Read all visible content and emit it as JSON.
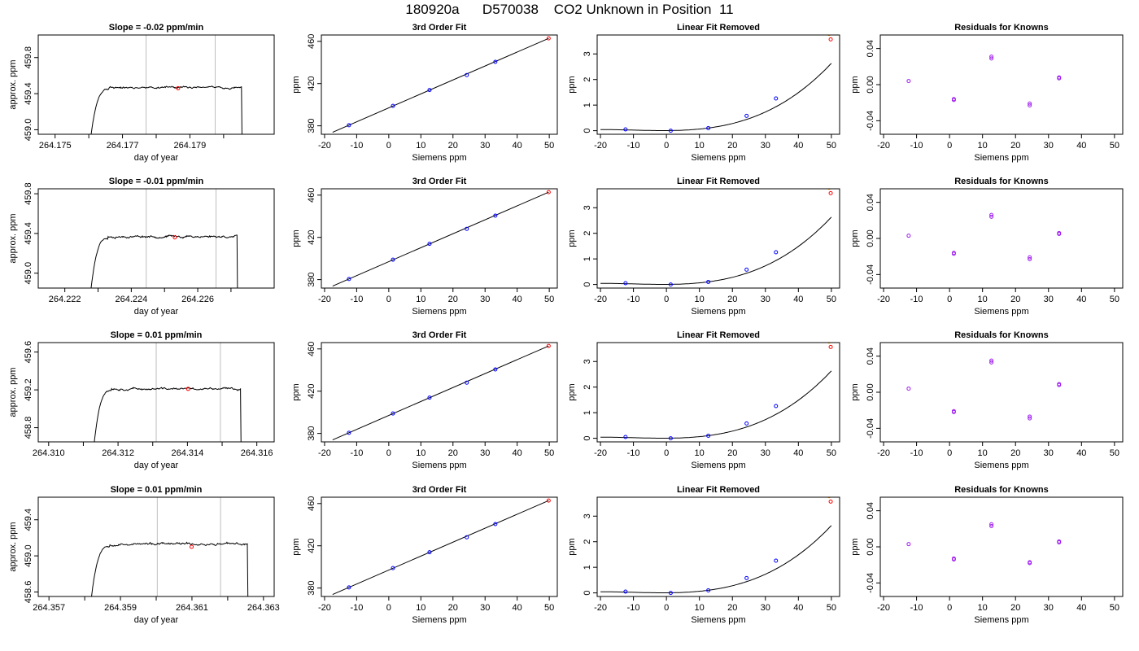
{
  "figure": {
    "title": "180920a      D570038    CO2 Unknown in Position  11"
  },
  "chart_data": [
    {
      "type": "line",
      "panel": "time-trace",
      "row": 0,
      "title": "Slope =  -0.02  ppm/min",
      "xlabel": "day of year",
      "ylabel": "approx. ppm",
      "xlim": [
        264.1745,
        264.1815
      ],
      "ylim": [
        458.95,
        460.05
      ],
      "xticks": [
        264.175,
        264.177,
        264.179
      ],
      "xtick_labels": [
        "264.175",
        "264.177",
        "264.179"
      ],
      "xminor": [
        264.176,
        264.178,
        264.18
      ],
      "yticks": [
        459.0,
        459.4,
        459.8
      ],
      "ytick_labels": [
        "459.0",
        "459.4",
        "459.8"
      ],
      "t_start": 264.17591,
      "t_rise_end": 264.1766,
      "t_end": 264.18053,
      "plateau": 459.47,
      "noise": 0.012,
      "seed": 11,
      "vlines": [
        264.1777,
        264.17975
      ],
      "marker": {
        "x": 264.17865,
        "y": 459.46
      }
    },
    {
      "type": "line",
      "panel": "time-trace",
      "row": 1,
      "title": "Slope =  -0.01  ppm/min",
      "xlabel": "day of year",
      "ylabel": "approx. ppm",
      "xlim": [
        264.2212,
        264.2283
      ],
      "ylim": [
        458.85,
        459.85
      ],
      "xticks": [
        264.222,
        264.224,
        264.226
      ],
      "xtick_labels": [
        "264.222",
        "264.224",
        "264.226"
      ],
      "xminor": [
        264.223,
        264.225,
        264.227
      ],
      "yticks": [
        459.0,
        459.4,
        459.8
      ],
      "ytick_labels": [
        "459.0",
        "459.4",
        "459.8"
      ],
      "t_start": 264.22264,
      "t_rise_end": 264.2233,
      "t_end": 264.22718,
      "plateau": 459.37,
      "noise": 0.012,
      "seed": 23,
      "vlines": [
        264.22445,
        264.22655
      ],
      "marker": {
        "x": 264.22531,
        "y": 459.36
      }
    },
    {
      "type": "line",
      "panel": "time-trace",
      "row": 2,
      "title": "Slope =  0.01  ppm/min",
      "xlabel": "day of year",
      "ylabel": "approx. ppm",
      "xlim": [
        264.3097,
        264.3165
      ],
      "ylim": [
        458.65,
        459.7
      ],
      "xticks": [
        264.31,
        264.312,
        264.314,
        264.316
      ],
      "xtick_labels": [
        "264.310",
        "264.312",
        "264.314",
        "264.316"
      ],
      "xminor": [
        264.311,
        264.313,
        264.315
      ],
      "yticks": [
        458.8,
        459.2,
        459.6
      ],
      "ytick_labels": [
        "458.8",
        "459.2",
        "459.6"
      ],
      "t_start": 264.31118,
      "t_rise_end": 264.3118,
      "t_end": 264.31553,
      "plateau": 459.21,
      "noise": 0.012,
      "seed": 37,
      "vlines": [
        264.3131,
        264.31495
      ],
      "marker": {
        "x": 264.31402,
        "y": 459.21
      }
    },
    {
      "type": "line",
      "panel": "time-trace",
      "row": 3,
      "title": "Slope =  0.01  ppm/min",
      "xlabel": "day of year",
      "ylabel": "approx. ppm",
      "xlim": [
        264.3567,
        264.3633
      ],
      "ylim": [
        458.55,
        459.65
      ],
      "xticks": [
        264.357,
        264.359,
        264.361,
        264.363
      ],
      "xtick_labels": [
        "264.357",
        "264.359",
        "264.361",
        "264.363"
      ],
      "xminor": [
        264.358,
        264.36,
        264.362
      ],
      "yticks": [
        458.6,
        459.0,
        459.4
      ],
      "ytick_labels": [
        "458.6",
        "459.0",
        "459.4"
      ],
      "t_start": 264.35805,
      "t_rise_end": 264.3587,
      "t_end": 264.36255,
      "plateau": 459.13,
      "noise": 0.014,
      "seed": 53,
      "vlines": [
        264.36003,
        264.3618
      ],
      "marker": {
        "x": 264.36099,
        "y": 459.1
      }
    },
    {
      "type": "scatter",
      "panel": "cubic-fit",
      "row": 0,
      "title": "3rd Order Fit",
      "xlabel": "Siemens ppm",
      "ylabel": "ppm",
      "xlim": [
        -21,
        52.5
      ],
      "ylim": [
        372,
        466
      ],
      "xticks": [
        -20,
        -10,
        0,
        10,
        20,
        30,
        40,
        50
      ],
      "xtick_labels": [
        "-20",
        "-10",
        "0",
        "10",
        "20",
        "30",
        "40",
        "50"
      ],
      "yticks": [
        380,
        420,
        460
      ],
      "ytick_labels": [
        "380",
        "420",
        "460"
      ],
      "line": {
        "x": [
          -17.5,
          49.8
        ],
        "y": [
          373.9,
          462.8
        ]
      },
      "knowns": {
        "x": [
          -12.4,
          1.3,
          12.7,
          24.3,
          33.2
        ],
        "y": [
          380.6,
          398.9,
          413.9,
          428.1,
          440.6
        ]
      },
      "unknown": {
        "x": 49.8,
        "y": 462.8
      }
    },
    {
      "type": "scatter",
      "panel": "cubic-fit",
      "row": 1,
      "title": "3rd Order Fit",
      "xlabel": "Siemens ppm",
      "ylabel": "ppm",
      "xlim": [
        -21,
        52.5
      ],
      "ylim": [
        372,
        466
      ],
      "xticks": [
        -20,
        -10,
        0,
        10,
        20,
        30,
        40,
        50
      ],
      "xtick_labels": [
        "-20",
        "-10",
        "0",
        "10",
        "20",
        "30",
        "40",
        "50"
      ],
      "yticks": [
        380,
        420,
        460
      ],
      "ytick_labels": [
        "380",
        "420",
        "460"
      ],
      "line": {
        "x": [
          -17.5,
          49.8
        ],
        "y": [
          373.9,
          462.8
        ]
      },
      "knowns": {
        "x": [
          -12.4,
          1.3,
          12.7,
          24.3,
          33.2
        ],
        "y": [
          380.6,
          398.9,
          413.9,
          428.1,
          440.6
        ]
      },
      "unknown": {
        "x": 49.8,
        "y": 462.8
      }
    },
    {
      "type": "scatter",
      "panel": "cubic-fit",
      "row": 2,
      "title": "3rd Order Fit",
      "xlabel": "Siemens ppm",
      "ylabel": "ppm",
      "xlim": [
        -21,
        52.5
      ],
      "ylim": [
        372,
        466
      ],
      "xticks": [
        -20,
        -10,
        0,
        10,
        20,
        30,
        40,
        50
      ],
      "xtick_labels": [
        "-20",
        "-10",
        "0",
        "10",
        "20",
        "30",
        "40",
        "50"
      ],
      "yticks": [
        380,
        420,
        460
      ],
      "ytick_labels": [
        "380",
        "420",
        "460"
      ],
      "line": {
        "x": [
          -17.5,
          49.8
        ],
        "y": [
          373.9,
          462.8
        ]
      },
      "knowns": {
        "x": [
          -12.4,
          1.3,
          12.7,
          24.3,
          33.2
        ],
        "y": [
          380.6,
          398.9,
          413.9,
          428.1,
          440.6
        ]
      },
      "unknown": {
        "x": 49.8,
        "y": 462.8
      }
    },
    {
      "type": "scatter",
      "panel": "cubic-fit",
      "row": 3,
      "title": "3rd Order Fit",
      "xlabel": "Siemens ppm",
      "ylabel": "ppm",
      "xlim": [
        -21,
        52.5
      ],
      "ylim": [
        372,
        466
      ],
      "xticks": [
        -20,
        -10,
        0,
        10,
        20,
        30,
        40,
        50
      ],
      "xtick_labels": [
        "-20",
        "-10",
        "0",
        "10",
        "20",
        "30",
        "40",
        "50"
      ],
      "yticks": [
        380,
        420,
        460
      ],
      "ytick_labels": [
        "380",
        "420",
        "460"
      ],
      "line": {
        "x": [
          -17.5,
          49.8
        ],
        "y": [
          373.9,
          462.8
        ]
      },
      "knowns": {
        "x": [
          -12.4,
          1.3,
          12.7,
          24.3,
          33.2
        ],
        "y": [
          380.6,
          398.9,
          413.9,
          428.1,
          440.6
        ]
      },
      "unknown": {
        "x": 49.8,
        "y": 462.8
      }
    },
    {
      "type": "scatter",
      "panel": "linear-removed",
      "row": 0,
      "title": "Linear Fit Removed",
      "xlabel": "Siemens ppm",
      "ylabel": "ppm",
      "xlim": [
        -21,
        52.5
      ],
      "ylim": [
        -0.14,
        3.74
      ],
      "xticks": [
        -20,
        -10,
        0,
        10,
        20,
        30,
        40,
        50
      ],
      "xtick_labels": [
        "-20",
        "-10",
        "0",
        "10",
        "20",
        "30",
        "40",
        "50"
      ],
      "yticks": [
        0,
        1,
        2,
        3
      ],
      "ytick_labels": [
        "0",
        "1",
        "2",
        "3"
      ],
      "knowns": {
        "x": [
          -12.4,
          1.3,
          12.7,
          24.3,
          33.2
        ],
        "y": [
          0.05,
          0.0,
          0.1,
          0.58,
          1.26
        ]
      },
      "unknown": {
        "x": 49.8,
        "y": 3.57
      },
      "ref": {
        "x": 49.3,
        "y": 3.78
      }
    },
    {
      "type": "scatter",
      "panel": "linear-removed",
      "row": 1,
      "title": "Linear Fit Removed",
      "xlabel": "Siemens ppm",
      "ylabel": "ppm",
      "xlim": [
        -21,
        52.5
      ],
      "ylim": [
        -0.14,
        3.74
      ],
      "xticks": [
        -20,
        -10,
        0,
        10,
        20,
        30,
        40,
        50
      ],
      "xtick_labels": [
        "-20",
        "-10",
        "0",
        "10",
        "20",
        "30",
        "40",
        "50"
      ],
      "yticks": [
        0,
        1,
        2,
        3
      ],
      "ytick_labels": [
        "0",
        "1",
        "2",
        "3"
      ],
      "knowns": {
        "x": [
          -12.4,
          1.3,
          12.7,
          24.3,
          33.2
        ],
        "y": [
          0.05,
          0.0,
          0.1,
          0.58,
          1.26
        ]
      },
      "unknown": {
        "x": 49.8,
        "y": 3.57
      },
      "ref": {
        "x": 49.3,
        "y": 3.78
      }
    },
    {
      "type": "scatter",
      "panel": "linear-removed",
      "row": 2,
      "title": "Linear Fit Removed",
      "xlabel": "Siemens ppm",
      "ylabel": "ppm",
      "xlim": [
        -21,
        52.5
      ],
      "ylim": [
        -0.14,
        3.74
      ],
      "xticks": [
        -20,
        -10,
        0,
        10,
        20,
        30,
        40,
        50
      ],
      "xtick_labels": [
        "-20",
        "-10",
        "0",
        "10",
        "20",
        "30",
        "40",
        "50"
      ],
      "yticks": [
        0,
        1,
        2,
        3
      ],
      "ytick_labels": [
        "0",
        "1",
        "2",
        "3"
      ],
      "knowns": {
        "x": [
          -12.4,
          1.3,
          12.7,
          24.3,
          33.2
        ],
        "y": [
          0.05,
          0.0,
          0.1,
          0.58,
          1.26
        ]
      },
      "unknown": {
        "x": 49.8,
        "y": 3.57
      },
      "ref": {
        "x": 49.3,
        "y": 3.78
      }
    },
    {
      "type": "scatter",
      "panel": "linear-removed",
      "row": 3,
      "title": "Linear Fit Removed",
      "xlabel": "Siemens ppm",
      "ylabel": "ppm",
      "xlim": [
        -21,
        52.5
      ],
      "ylim": [
        -0.14,
        3.74
      ],
      "xticks": [
        -20,
        -10,
        0,
        10,
        20,
        30,
        40,
        50
      ],
      "xtick_labels": [
        "-20",
        "-10",
        "0",
        "10",
        "20",
        "30",
        "40",
        "50"
      ],
      "yticks": [
        0,
        1,
        2,
        3
      ],
      "ytick_labels": [
        "0",
        "1",
        "2",
        "3"
      ],
      "knowns": {
        "x": [
          -12.4,
          1.3,
          12.7,
          24.3,
          33.2
        ],
        "y": [
          0.05,
          0.0,
          0.1,
          0.58,
          1.26
        ]
      },
      "unknown": {
        "x": 49.8,
        "y": 3.57
      },
      "ref": {
        "x": 49.3,
        "y": 3.78
      }
    },
    {
      "type": "scatter",
      "panel": "residuals",
      "row": 0,
      "title": "Residuals for Knowns",
      "xlabel": "Siemens ppm",
      "ylabel": "ppm",
      "xlim": [
        -21,
        52.5
      ],
      "ylim": [
        -0.055,
        0.055
      ],
      "xticks": [
        -20,
        -10,
        0,
        10,
        20,
        30,
        40,
        50
      ],
      "xtick_labels": [
        "-20",
        "-10",
        "0",
        "10",
        "20",
        "30",
        "40",
        "50"
      ],
      "yticks": [
        -0.04,
        0.0,
        0.04
      ],
      "ytick_labels": [
        "-0.04",
        "0.00",
        "0.04"
      ],
      "points": {
        "x": [
          -12.4,
          1.3,
          1.3,
          12.7,
          12.7,
          24.3,
          24.3,
          33.2,
          33.2
        ],
        "y": [
          0.004,
          -0.016,
          -0.017,
          0.031,
          0.029,
          -0.021,
          -0.023,
          0.008,
          0.007
        ]
      }
    },
    {
      "type": "scatter",
      "panel": "residuals",
      "row": 1,
      "title": "Residuals for Knowns",
      "xlabel": "Siemens ppm",
      "ylabel": "ppm",
      "xlim": [
        -21,
        52.5
      ],
      "ylim": [
        -0.055,
        0.055
      ],
      "xticks": [
        -20,
        -10,
        0,
        10,
        20,
        30,
        40,
        50
      ],
      "xtick_labels": [
        "-20",
        "-10",
        "0",
        "10",
        "20",
        "30",
        "40",
        "50"
      ],
      "yticks": [
        -0.04,
        0.0,
        0.04
      ],
      "ytick_labels": [
        "-0.04",
        "0.00",
        "0.04"
      ],
      "points": {
        "x": [
          -12.4,
          1.3,
          1.3,
          12.7,
          12.7,
          24.3,
          24.3,
          33.2,
          33.2
        ],
        "y": [
          0.003,
          -0.016,
          -0.017,
          0.026,
          0.024,
          -0.021,
          -0.023,
          0.006,
          0.005
        ]
      }
    },
    {
      "type": "scatter",
      "panel": "residuals",
      "row": 2,
      "title": "Residuals for Knowns",
      "xlabel": "Siemens ppm",
      "ylabel": "ppm",
      "xlim": [
        -21,
        52.5
      ],
      "ylim": [
        -0.055,
        0.055
      ],
      "xticks": [
        -20,
        -10,
        0,
        10,
        20,
        30,
        40,
        50
      ],
      "xtick_labels": [
        "-20",
        "-10",
        "0",
        "10",
        "20",
        "30",
        "40",
        "50"
      ],
      "yticks": [
        -0.04,
        0.0,
        0.04
      ],
      "ytick_labels": [
        "-0.04",
        "0.00",
        "0.04"
      ],
      "points": {
        "x": [
          -12.4,
          1.3,
          1.3,
          12.7,
          12.7,
          24.3,
          24.3,
          33.2,
          33.2
        ],
        "y": [
          0.004,
          -0.021,
          -0.022,
          0.035,
          0.033,
          -0.027,
          -0.029,
          0.009,
          0.008
        ]
      }
    },
    {
      "type": "scatter",
      "panel": "residuals",
      "row": 3,
      "title": "Residuals for Knowns",
      "xlabel": "Siemens ppm",
      "ylabel": "ppm",
      "xlim": [
        -21,
        52.5
      ],
      "ylim": [
        -0.055,
        0.055
      ],
      "xticks": [
        -20,
        -10,
        0,
        10,
        20,
        30,
        40,
        50
      ],
      "xtick_labels": [
        "-20",
        "-10",
        "0",
        "10",
        "20",
        "30",
        "40",
        "50"
      ],
      "yticks": [
        -0.04,
        0.0,
        0.04
      ],
      "ytick_labels": [
        "-0.04",
        "0.00",
        "0.04"
      ],
      "points": {
        "x": [
          -12.4,
          1.3,
          1.3,
          12.7,
          12.7,
          24.3,
          24.3,
          33.2,
          33.2
        ],
        "y": [
          0.003,
          -0.013,
          -0.014,
          0.025,
          0.023,
          -0.017,
          -0.018,
          0.006,
          0.005
        ]
      }
    }
  ],
  "colors": {
    "axes": "#000000",
    "trace": "#000000",
    "vline": "#bebebe",
    "known": "#0000ff",
    "unknown": "#ff0000",
    "reference": "#ffa500",
    "residual": "#a020f0"
  }
}
